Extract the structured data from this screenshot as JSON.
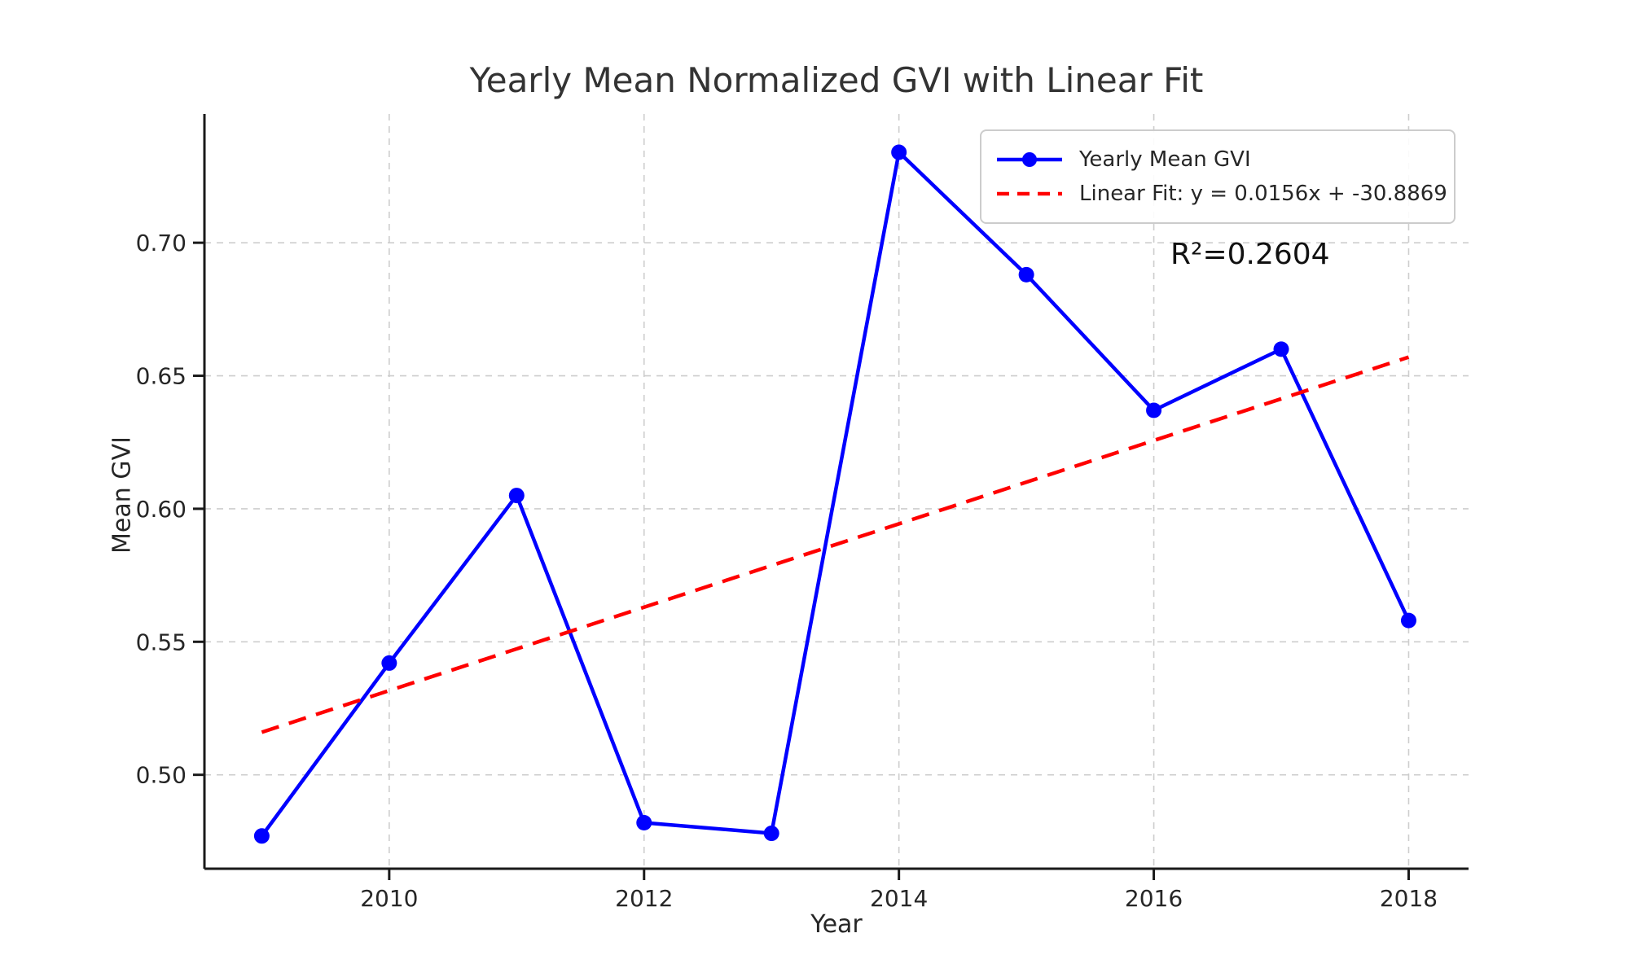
{
  "colors": {
    "series": "#0000ff",
    "fit": "#ff0000",
    "grid": "#cdcdcd",
    "spine": "#1a1a1a",
    "text": "#262626"
  },
  "chart_data": {
    "type": "line",
    "title": "Yearly Mean Normalized GVI with Linear Fit",
    "xlabel": "Year",
    "ylabel": "Mean GVI",
    "x": [
      2009,
      2010,
      2011,
      2012,
      2013,
      2014,
      2015,
      2016,
      2017,
      2018
    ],
    "series": [
      {
        "name": "Yearly Mean GVI",
        "type": "line-markers",
        "color": "#0000ff",
        "values": [
          0.477,
          0.542,
          0.605,
          0.482,
          0.478,
          0.734,
          0.688,
          0.637,
          0.66,
          0.558
        ]
      },
      {
        "name": "Linear Fit: y = 0.0156x + -30.8869",
        "type": "dashed-line",
        "color": "#ff0000",
        "slope": 0.0156,
        "intercept": -30.8869,
        "x": [
          2009,
          2018
        ],
        "values": [
          0.516,
          0.657
        ]
      }
    ],
    "annotation": "R²=0.2604",
    "r_squared": 0.2604,
    "xticks": {
      "values": [
        2010,
        2012,
        2014,
        2016,
        2018
      ],
      "labels": [
        "2010",
        "2012",
        "2014",
        "2016",
        "2018"
      ]
    },
    "yticks": {
      "values": [
        0.5,
        0.55,
        0.6,
        0.65,
        0.7
      ],
      "labels": [
        "0.50",
        "0.55",
        "0.60",
        "0.65",
        "0.70"
      ]
    },
    "xlim": [
      2008.55,
      2018.47
    ],
    "ylim": [
      0.4647,
      0.7484
    ],
    "grid": true,
    "legend_position": "upper right"
  }
}
